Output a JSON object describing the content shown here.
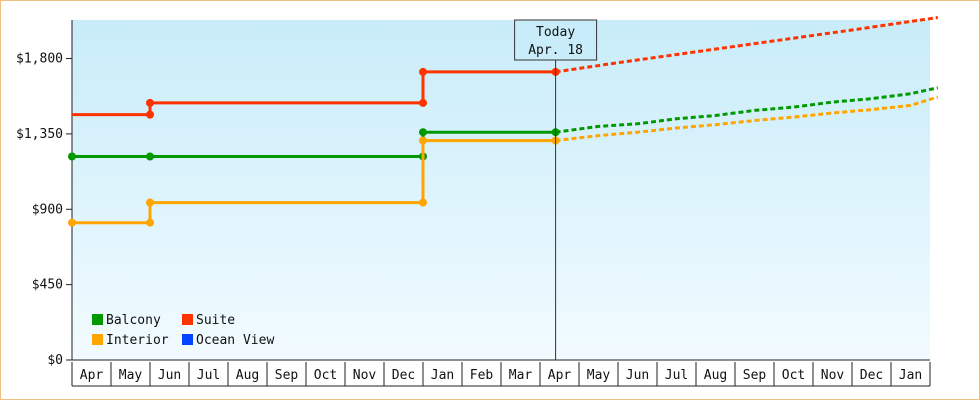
{
  "chart_data": {
    "type": "line",
    "title": "",
    "xlabel": "",
    "ylabel": "",
    "categories": [
      "Apr",
      "May",
      "Jun",
      "Jul",
      "Aug",
      "Sep",
      "Oct",
      "Nov",
      "Dec",
      "Jan",
      "Feb",
      "Mar",
      "Apr",
      "May",
      "Jun",
      "Jul",
      "Aug",
      "Sep",
      "Oct",
      "Nov",
      "Dec",
      "Jan"
    ],
    "ylim": [
      0,
      2030
    ],
    "yticks": [
      {
        "value": 0,
        "label": "$0"
      },
      {
        "value": 450,
        "label": "$450"
      },
      {
        "value": 900,
        "label": "$900"
      },
      {
        "value": 1350,
        "label": "$1,350"
      },
      {
        "value": 1800,
        "label": "$1,800"
      }
    ],
    "today": {
      "line1": "Today",
      "line2": "Apr. 18",
      "x": 12.4
    },
    "grid": false,
    "legend_position": "bottom-left",
    "series": [
      {
        "name": "Balcony",
        "color": "#009900",
        "style": "step",
        "points": [
          [
            0,
            1215
          ],
          [
            2.0,
            1215
          ],
          [
            9.0,
            1215
          ],
          [
            9.0,
            1360
          ],
          [
            12.4,
            1360
          ]
        ],
        "markers": [
          [
            0,
            1215
          ],
          [
            2.0,
            1215
          ],
          [
            9.0,
            1215
          ],
          [
            9.0,
            1360
          ],
          [
            12.4,
            1360
          ]
        ],
        "forecast": [
          [
            12.4,
            1360
          ],
          [
            13.5,
            1395
          ],
          [
            14.5,
            1410
          ],
          [
            15.5,
            1440
          ],
          [
            16.5,
            1460
          ],
          [
            17.5,
            1490
          ],
          [
            18.5,
            1510
          ],
          [
            19.5,
            1540
          ],
          [
            20.5,
            1560
          ],
          [
            21.5,
            1590
          ],
          [
            22.2,
            1625
          ]
        ]
      },
      {
        "name": "Suite",
        "color": "#ff3300",
        "style": "step",
        "points": [
          [
            0,
            1465
          ],
          [
            2.0,
            1465
          ],
          [
            2.0,
            1535
          ],
          [
            9.0,
            1535
          ],
          [
            9.0,
            1720
          ],
          [
            12.4,
            1720
          ]
        ],
        "markers": [
          [
            2.0,
            1465
          ],
          [
            2.0,
            1535
          ],
          [
            9.0,
            1535
          ],
          [
            9.0,
            1720
          ],
          [
            12.4,
            1720
          ]
        ],
        "forecast": [
          [
            12.4,
            1720
          ],
          [
            14,
            1775
          ],
          [
            16,
            1840
          ],
          [
            18,
            1905
          ],
          [
            20,
            1970
          ],
          [
            22.2,
            2045
          ]
        ]
      },
      {
        "name": "Interior",
        "color": "#ffa500",
        "style": "step",
        "points": [
          [
            0,
            820
          ],
          [
            2.0,
            820
          ],
          [
            2.0,
            940
          ],
          [
            9.0,
            940
          ],
          [
            9.0,
            1310
          ],
          [
            12.4,
            1310
          ]
        ],
        "markers": [
          [
            0,
            820
          ],
          [
            2.0,
            820
          ],
          [
            2.0,
            940
          ],
          [
            9.0,
            940
          ],
          [
            9.0,
            1310
          ],
          [
            12.4,
            1310
          ]
        ],
        "forecast": [
          [
            12.4,
            1310
          ],
          [
            13.5,
            1340
          ],
          [
            14.5,
            1360
          ],
          [
            15.5,
            1385
          ],
          [
            16.5,
            1405
          ],
          [
            17.5,
            1430
          ],
          [
            18.5,
            1450
          ],
          [
            19.5,
            1475
          ],
          [
            20.5,
            1495
          ],
          [
            21.5,
            1520
          ],
          [
            22.2,
            1570
          ]
        ]
      },
      {
        "name": "Ocean View",
        "color": "#0044ff",
        "style": "step",
        "points": [],
        "markers": [],
        "forecast": []
      }
    ]
  }
}
